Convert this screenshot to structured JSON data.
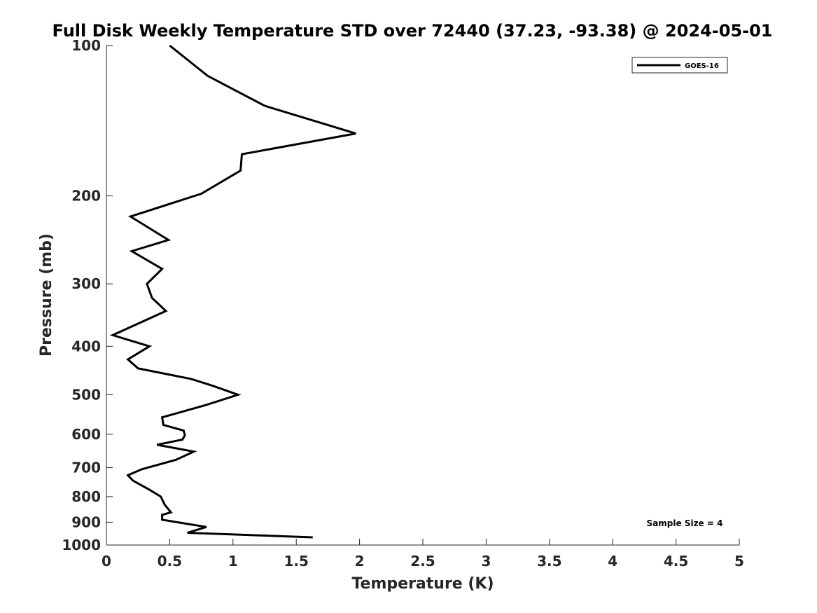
{
  "chart_data": {
    "type": "line",
    "title": "Full Disk Weekly Temperature STD over 72440 (37.23, -93.38) @ 2024-05-01",
    "xlabel": "Temperature (K)",
    "ylabel": "Pressure (mb)",
    "xlim": [
      0,
      5
    ],
    "ylim": [
      1000,
      100
    ],
    "y_scale": "log",
    "y_reversed": true,
    "grid": false,
    "legend_position": "top-right",
    "x_ticks": [
      "0",
      "0.5",
      "1",
      "1.5",
      "2",
      "2.5",
      "3",
      "3.5",
      "4",
      "4.5",
      "5"
    ],
    "y_ticks": [
      "100",
      "200",
      "300",
      "400",
      "500",
      "600",
      "700",
      "800",
      "900",
      "1000"
    ],
    "annotation": "Sample Size = 4",
    "series": [
      {
        "name": "GOES-16",
        "color": "#000000",
        "x": [
          0.5,
          0.8,
          1.25,
          1.97,
          1.07,
          1.06,
          0.75,
          0.19,
          0.49,
          0.2,
          0.44,
          0.32,
          0.36,
          0.47,
          0.05,
          0.34,
          0.17,
          0.25,
          0.67,
          0.84,
          1.04,
          0.78,
          0.44,
          0.45,
          0.61,
          0.62,
          0.6,
          0.4,
          0.69,
          0.55,
          0.28,
          0.17,
          0.21,
          0.34,
          0.43,
          0.46,
          0.51,
          0.44,
          0.44,
          0.79,
          0.64,
          1.63
        ],
        "y": [
          100,
          115,
          132,
          150,
          165,
          178,
          198,
          220,
          245,
          258,
          280,
          300,
          320,
          340,
          380,
          400,
          425,
          443,
          465,
          480,
          500,
          525,
          555,
          575,
          590,
          603,
          615,
          630,
          650,
          675,
          705,
          725,
          743,
          775,
          800,
          830,
          860,
          870,
          890,
          920,
          945,
          965
        ]
      }
    ]
  }
}
